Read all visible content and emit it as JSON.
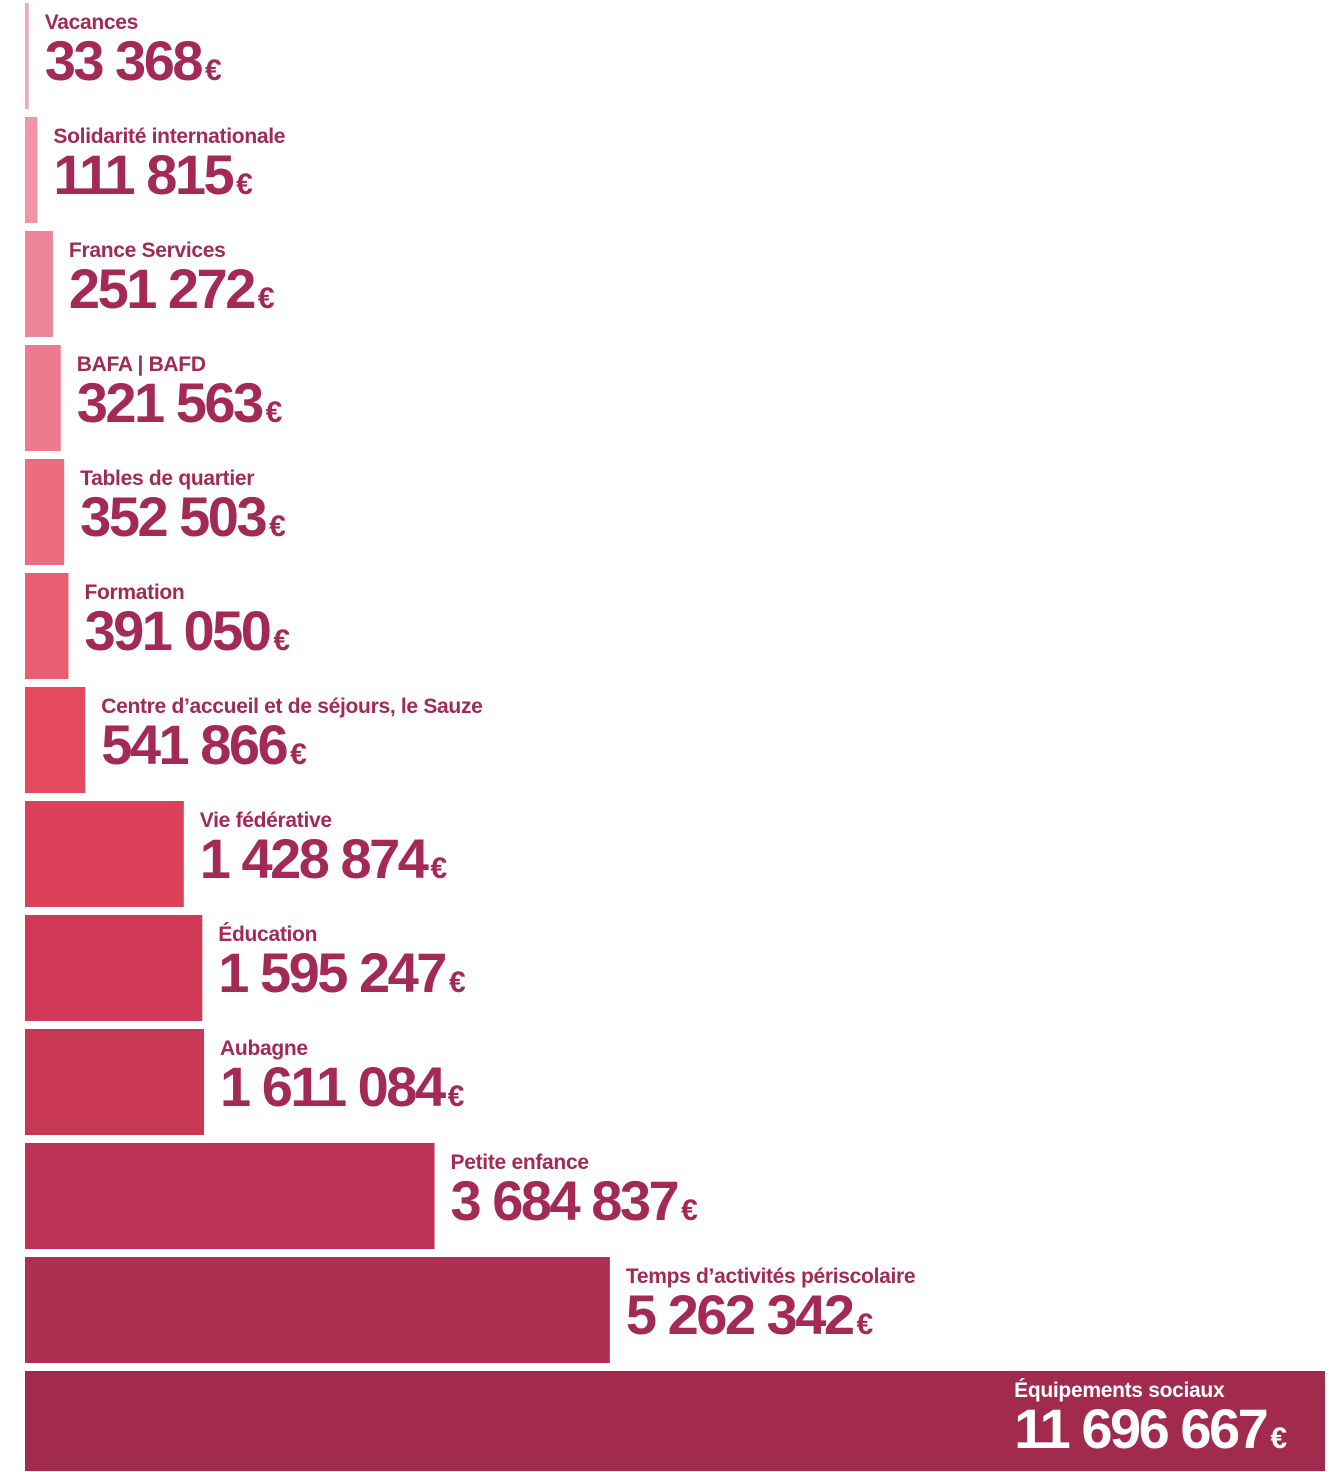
{
  "chart_data": {
    "type": "bar",
    "orientation": "horizontal",
    "unit": "€",
    "categories": [
      "Vacances",
      "Solidarité internationale",
      "France Services",
      "BAFA | BAFD",
      "Tables de quartier",
      "Formation",
      "Centre d’accueil et de séjours, le Sauze",
      "Vie fédérative",
      "Éducation",
      "Aubagne",
      "Petite enfance",
      "Temps d’activités périscolaire",
      "Équipements sociaux"
    ],
    "values": [
      33368,
      111815,
      251272,
      321563,
      352503,
      391050,
      541866,
      1428874,
      1595247,
      1611084,
      3684837,
      5262342,
      11696667
    ],
    "value_labels": [
      "33 368",
      "111 815",
      "251 272",
      "321 563",
      "352 503",
      "391 050",
      "541 866",
      "1 428 874",
      "1 595 247",
      "1 611 084",
      "3 684 837",
      "5 262 342",
      "11 696 667"
    ],
    "bar_colors": [
      "#f3a7b8",
      "#f094a8",
      "#ee8498",
      "#ee7a8d",
      "#ec6d80",
      "#ea5d70",
      "#e54b60",
      "#dc4159",
      "#d13a56",
      "#c83754",
      "#bb3355",
      "#af2f53",
      "#a32a4f"
    ],
    "label_color": "#a32a55",
    "last_label_color": "#ffffff",
    "xlim": [
      0,
      11696667
    ],
    "grid": false,
    "legend": "none"
  }
}
